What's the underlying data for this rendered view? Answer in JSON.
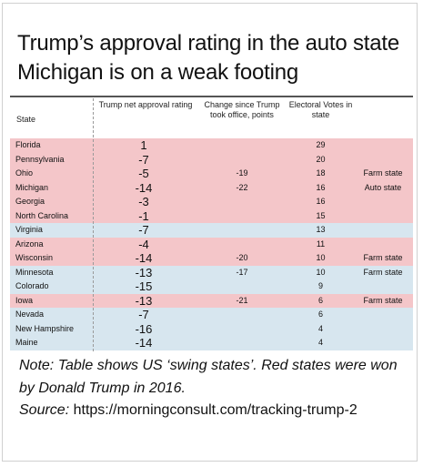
{
  "title": "Trump’s approval rating in the auto state Michigan is on a weak footing",
  "headers": {
    "state": "State",
    "approval": "Trump net approval rating",
    "change": "Change since Trump took office, points",
    "electoral": "Electoral Votes in state",
    "note": ""
  },
  "note_text": "Note: Table shows US ‘swing states’. Red states were won by Donald Trump in 2016.",
  "source_label": "Source:",
  "source_text": "https://morningconsult.com/tracking-trump-2",
  "colors": {
    "red_row": "#f4c6c9",
    "blue_row": "#d7e6ef"
  },
  "chart_data": {
    "type": "table",
    "title": "Trump’s approval rating in the auto state Michigan is on a weak footing",
    "columns": [
      "State",
      "Trump net approval rating",
      "Change since Trump took office, points",
      "Electoral Votes in state",
      ""
    ],
    "rows": [
      {
        "state": "Florida",
        "approval": "1",
        "change": "",
        "electoral": "29",
        "note": "",
        "won_by_trump": true
      },
      {
        "state": "Pennsylvania",
        "approval": "-7",
        "change": "",
        "electoral": "20",
        "note": "",
        "won_by_trump": true
      },
      {
        "state": "Ohio",
        "approval": "-5",
        "change": "-19",
        "electoral": "18",
        "note": "Farm state",
        "won_by_trump": true
      },
      {
        "state": "Michigan",
        "approval": "-14",
        "change": "-22",
        "electoral": "16",
        "note": "Auto state",
        "won_by_trump": true
      },
      {
        "state": "Georgia",
        "approval": "-3",
        "change": "",
        "electoral": "16",
        "note": "",
        "won_by_trump": true
      },
      {
        "state": "North Carolina",
        "approval": "-1",
        "change": "",
        "electoral": "15",
        "note": "",
        "won_by_trump": true
      },
      {
        "state": "Virginia",
        "approval": "-7",
        "change": "",
        "electoral": "13",
        "note": "",
        "won_by_trump": false
      },
      {
        "state": "Arizona",
        "approval": "-4",
        "change": "",
        "electoral": "11",
        "note": "",
        "won_by_trump": true
      },
      {
        "state": "Wisconsin",
        "approval": "-14",
        "change": "-20",
        "electoral": "10",
        "note": "Farm state",
        "won_by_trump": true
      },
      {
        "state": "Minnesota",
        "approval": "-13",
        "change": "-17",
        "electoral": "10",
        "note": "Farm state",
        "won_by_trump": false
      },
      {
        "state": "Colorado",
        "approval": "-15",
        "change": "",
        "electoral": "9",
        "note": "",
        "won_by_trump": false
      },
      {
        "state": "Iowa",
        "approval": "-13",
        "change": "-21",
        "electoral": "6",
        "note": "Farm state",
        "won_by_trump": true
      },
      {
        "state": "Nevada",
        "approval": "-7",
        "change": "",
        "electoral": "6",
        "note": "",
        "won_by_trump": false
      },
      {
        "state": "New Hampshire",
        "approval": "-16",
        "change": "",
        "electoral": "4",
        "note": "",
        "won_by_trump": false
      },
      {
        "state": "Maine",
        "approval": "-14",
        "change": "",
        "electoral": "4",
        "note": "",
        "won_by_trump": false
      }
    ]
  }
}
